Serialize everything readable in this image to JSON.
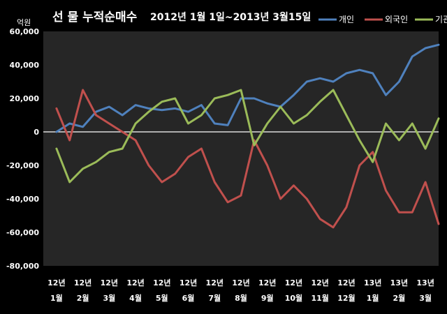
{
  "chart_data": {
    "type": "line",
    "title_main": "선 물 누적순매수",
    "title_sub": "2012년 1월 1일~2013년 3월15일",
    "ylabel_unit": "억원",
    "ylim": [
      -80000,
      60000
    ],
    "yticks": [
      60000,
      40000,
      20000,
      0,
      -20000,
      -40000,
      -60000,
      -80000
    ],
    "ytick_labels": [
      "60,000",
      "40,000",
      "20,000",
      "0",
      "-20,000",
      "-40,000",
      "-60,000",
      "-80,000"
    ],
    "grid": false,
    "legend_position": "top-right",
    "x_categories": [
      {
        "year": "12년",
        "month": "1월"
      },
      {
        "year": "12년",
        "month": "2월"
      },
      {
        "year": "12년",
        "month": "3월"
      },
      {
        "year": "12년",
        "month": "4월"
      },
      {
        "year": "12년",
        "month": "5월"
      },
      {
        "year": "12년",
        "month": "6월"
      },
      {
        "year": "12년",
        "month": "7월"
      },
      {
        "year": "12년",
        "month": "8월"
      },
      {
        "year": "12년",
        "month": "9월"
      },
      {
        "year": "12년",
        "month": "10월"
      },
      {
        "year": "12년",
        "month": "11월"
      },
      {
        "year": "12년",
        "month": "12월"
      },
      {
        "year": "13년",
        "month": "1월"
      },
      {
        "year": "13년",
        "month": "2월"
      },
      {
        "year": "13년",
        "month": "3월"
      }
    ],
    "x": [
      0,
      0.5,
      1,
      1.5,
      2,
      2.5,
      3,
      3.5,
      4,
      4.5,
      5,
      5.5,
      6,
      6.5,
      7,
      7.5,
      8,
      8.5,
      9,
      9.5,
      10,
      10.5,
      11,
      11.5,
      12,
      12.5,
      13,
      13.5,
      14,
      14.5
    ],
    "series": [
      {
        "name": "개인",
        "color": "#4f81bd",
        "values": [
          0,
          5000,
          3000,
          12000,
          15000,
          10000,
          16000,
          14000,
          13000,
          14000,
          12000,
          16000,
          5000,
          4000,
          20000,
          20000,
          17000,
          15000,
          22000,
          30000,
          32000,
          30000,
          35000,
          37000,
          35000,
          22000,
          30000,
          45000,
          50000,
          52000
        ]
      },
      {
        "name": "외국인",
        "color": "#c0504d",
        "values": [
          14000,
          -5000,
          25000,
          10000,
          5000,
          0,
          -5000,
          -20000,
          -30000,
          -25000,
          -15000,
          -10000,
          -30000,
          -42000,
          -38000,
          -5000,
          -20000,
          -40000,
          -32000,
          -40000,
          -52000,
          -57000,
          -45000,
          -20000,
          -12000,
          -35000,
          -48000,
          -48000,
          -30000,
          -55000
        ]
      },
      {
        "name": "기관",
        "color": "#9bbb59",
        "values": [
          -10000,
          -30000,
          -22000,
          -18000,
          -12000,
          -10000,
          5000,
          12000,
          18000,
          20000,
          5000,
          10000,
          20000,
          22000,
          25000,
          -8000,
          5000,
          15000,
          5000,
          10000,
          18000,
          25000,
          10000,
          -5000,
          -18000,
          5000,
          -5000,
          5000,
          -10000,
          8000
        ]
      }
    ]
  }
}
